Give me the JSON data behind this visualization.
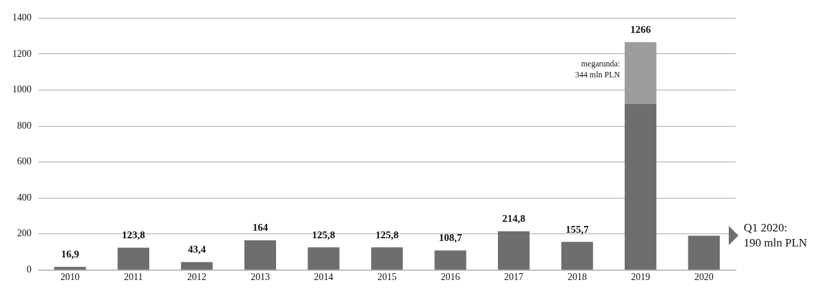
{
  "chart_data": {
    "type": "bar",
    "stacked": true,
    "categories": [
      "2010",
      "2011",
      "2012",
      "2013",
      "2014",
      "2015",
      "2016",
      "2017",
      "2018",
      "2019",
      "2020"
    ],
    "series": [
      {
        "color": "#6e6e6e",
        "values": [
          16.9,
          123.8,
          43.4,
          164,
          125.8,
          125.8,
          108.7,
          214.8,
          155.7,
          922,
          190
        ]
      },
      {
        "color": "#9c9c9c",
        "values": [
          null,
          null,
          null,
          null,
          null,
          null,
          null,
          null,
          null,
          344,
          null
        ]
      }
    ],
    "totals": [
      "16,9",
      "123,8",
      "43,4",
      "164",
      "125,8",
      "125,8",
      "108,7",
      "214,8",
      "155,7",
      "1266",
      null
    ],
    "ylim": [
      0,
      1400
    ],
    "yticks": [
      0,
      200,
      400,
      600,
      800,
      1000,
      1200,
      1400
    ],
    "grid": "y",
    "legend": false,
    "annotations": [
      "megarunda: 344 mln PLN",
      "Q1 2020: 190 mln PLN"
    ]
  }
}
